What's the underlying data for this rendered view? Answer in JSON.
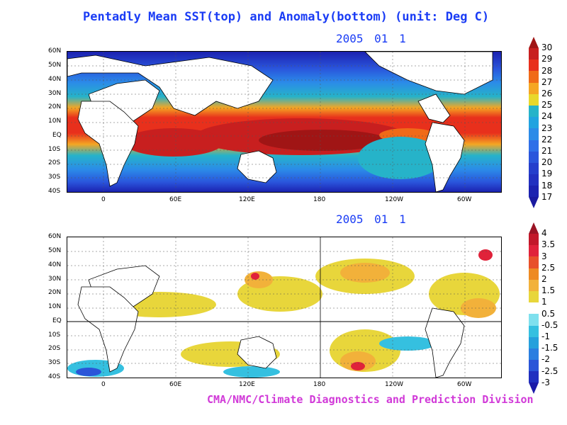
{
  "title": "Pentadly Mean SST(top) and Anomaly(bottom) (unit: Deg C)",
  "top_panel": {
    "date": "2005  01  1",
    "lat_labels": [
      "60N",
      "50N",
      "40N",
      "30N",
      "20N",
      "10N",
      "EQ",
      "10S",
      "20S",
      "30S",
      "40S"
    ],
    "lon_labels": [
      "0",
      "60E",
      "120E",
      "180",
      "120W",
      "60W"
    ],
    "colorbar": {
      "labels": [
        "30",
        "29",
        "28",
        "27",
        "26",
        "25",
        "24",
        "23",
        "22",
        "21",
        "20",
        "19",
        "18",
        "17"
      ],
      "colors": [
        "#a01515",
        "#c81f1f",
        "#e8301c",
        "#f06a18",
        "#f5a623",
        "#e8d82b",
        "#26b3c9",
        "#21a3e0",
        "#2b8be8",
        "#2f6fe8",
        "#2a55dc",
        "#253ecc",
        "#2230c0",
        "#1c22b0",
        "#1a1aa0"
      ]
    }
  },
  "bottom_panel": {
    "date": "2005  01  1",
    "lat_labels": [
      "60N",
      "50N",
      "40N",
      "30N",
      "20N",
      "10N",
      "EQ",
      "10S",
      "20S",
      "30S",
      "40S"
    ],
    "lon_labels": [
      "0",
      "60E",
      "120E",
      "180",
      "120W",
      "60W"
    ],
    "colorbar": {
      "labels": [
        "4",
        "3.5",
        "3",
        "2.5",
        "2",
        "1.5",
        "1",
        "0.5",
        "-0.5",
        "-1",
        "-1.5",
        "-2",
        "-2.5",
        "-3"
      ],
      "colors": [
        "#9a1425",
        "#c2182a",
        "#e0223a",
        "#e8502a",
        "#ee8a22",
        "#f2b13a",
        "#e8d63b",
        "#ffffff",
        "#7fe0ee",
        "#35c0e0",
        "#25a0dc",
        "#2a7ee0",
        "#2a55d8",
        "#2030c0",
        "#1a1aa8"
      ]
    }
  },
  "credit": "CMA/NMC/Climate Diagnostics and Prediction Division"
}
